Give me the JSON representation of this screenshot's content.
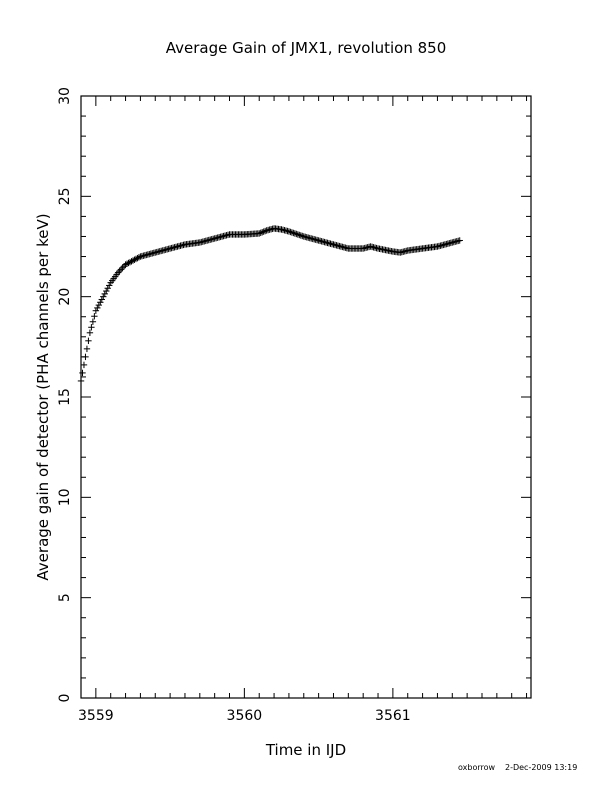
{
  "chart_data": {
    "type": "scatter",
    "title": "Average Gain of JMX1, revolution 850",
    "xlabel": "Time in IJD",
    "ylabel": "Average gain of detector (PHA channels per keV)",
    "xlim": [
      3558.9,
      3561.93
    ],
    "ylim": [
      0,
      30
    ],
    "x_ticks": [
      3559,
      3560,
      3561
    ],
    "y_ticks": [
      0,
      5,
      10,
      15,
      20,
      25,
      30
    ],
    "grid": false,
    "marker": "plus",
    "color": "#000000",
    "series": [
      {
        "x": [
          3558.9,
          3558.93,
          3558.96,
          3559.0,
          3559.05,
          3559.1,
          3559.15,
          3559.2,
          3559.25,
          3559.3,
          3559.4,
          3559.5,
          3559.6,
          3559.7,
          3559.8,
          3559.9,
          3560.0,
          3560.1,
          3560.15,
          3560.2,
          3560.25,
          3560.3,
          3560.4,
          3560.5,
          3560.6,
          3560.7,
          3560.8,
          3560.85,
          3560.9,
          3561.0,
          3561.05,
          3561.1,
          3561.2,
          3561.3,
          3561.4,
          3561.45
        ],
        "y": [
          15.8,
          17.0,
          18.2,
          19.3,
          20.0,
          20.7,
          21.2,
          21.6,
          21.8,
          22.0,
          22.2,
          22.4,
          22.6,
          22.7,
          22.9,
          23.1,
          23.1,
          23.15,
          23.3,
          23.4,
          23.35,
          23.25,
          23.0,
          22.8,
          22.6,
          22.4,
          22.4,
          22.5,
          22.4,
          22.25,
          22.2,
          22.3,
          22.4,
          22.5,
          22.7,
          22.8
        ]
      }
    ]
  },
  "footer": {
    "user": "oxborrow",
    "timestamp": "2-Dec-2009 13:19"
  }
}
